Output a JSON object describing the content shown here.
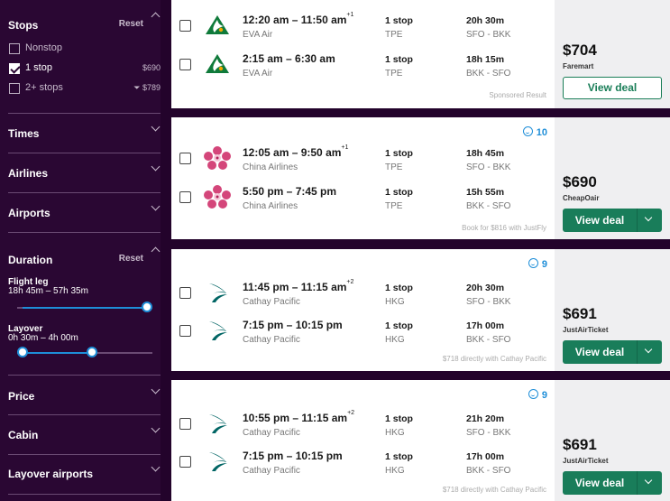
{
  "sidebar": {
    "stops": {
      "title": "Stops",
      "reset": "Reset",
      "options": [
        {
          "label": "Nonstop",
          "price": "",
          "checked": false
        },
        {
          "label": "1 stop",
          "price": "$690",
          "checked": true
        },
        {
          "label": "2+ stops",
          "price": "$789",
          "checked": false
        }
      ]
    },
    "times": {
      "title": "Times"
    },
    "airlines": {
      "title": "Airlines"
    },
    "airports": {
      "title": "Airports"
    },
    "duration": {
      "title": "Duration",
      "reset": "Reset",
      "flight_leg": {
        "label": "Flight leg",
        "range": "18h 45m – 57h 35m",
        "min_fraction": 0.0,
        "max_fraction": 1.0
      },
      "layover": {
        "label": "Layover",
        "range": "0h 30m – 4h 00m",
        "min_fraction": 0.0,
        "max_fraction": 0.56
      }
    },
    "price": {
      "title": "Price"
    },
    "cabin": {
      "title": "Cabin"
    },
    "layover_airports": {
      "title": "Layover airports"
    }
  },
  "results": [
    {
      "legs": [
        {
          "times": "12:20 am – 11:50 am",
          "day_offset": "+1",
          "airline": "EVA Air",
          "stops": "1 stop",
          "via": "TPE",
          "duration": "20h 30m",
          "route": "SFO - BKK",
          "logo": "eva-air-logo"
        },
        {
          "times": "2:15 am – 6:30 am",
          "day_offset": "",
          "airline": "EVA Air",
          "stops": "1 stop",
          "via": "TPE",
          "duration": "18h 15m",
          "route": "BKK - SFO",
          "logo": "eva-air-logo"
        }
      ],
      "footnote": "Sponsored Result",
      "rating": "",
      "price": "$704",
      "provider": "Faremart",
      "button": "View deal",
      "button_style": "outline"
    },
    {
      "legs": [
        {
          "times": "12:05 am – 9:50 am",
          "day_offset": "+1",
          "airline": "China Airlines",
          "stops": "1 stop",
          "via": "TPE",
          "duration": "18h 45m",
          "route": "SFO - BKK",
          "logo": "china-airlines-logo"
        },
        {
          "times": "5:50 pm – 7:45 pm",
          "day_offset": "",
          "airline": "China Airlines",
          "stops": "1 stop",
          "via": "TPE",
          "duration": "15h 55m",
          "route": "BKK - SFO",
          "logo": "china-airlines-logo"
        }
      ],
      "footnote": "Book for $816 with JustFly",
      "rating": "10",
      "price": "$690",
      "provider": "CheapOair",
      "button": "View deal",
      "button_style": "solid"
    },
    {
      "legs": [
        {
          "times": "11:45 pm – 11:15 am",
          "day_offset": "+2",
          "airline": "Cathay Pacific",
          "stops": "1 stop",
          "via": "HKG",
          "duration": "20h 30m",
          "route": "SFO - BKK",
          "logo": "cathay-pacific-logo"
        },
        {
          "times": "7:15 pm – 10:15 pm",
          "day_offset": "",
          "airline": "Cathay Pacific",
          "stops": "1 stop",
          "via": "HKG",
          "duration": "17h 00m",
          "route": "BKK - SFO",
          "logo": "cathay-pacific-logo"
        }
      ],
      "footnote": "$718 directly with Cathay Pacific",
      "rating": "9",
      "price": "$691",
      "provider": "JustAirTicket",
      "button": "View deal",
      "button_style": "solid"
    },
    {
      "legs": [
        {
          "times": "10:55 pm – 11:15 am",
          "day_offset": "+2",
          "airline": "Cathay Pacific",
          "stops": "1 stop",
          "via": "HKG",
          "duration": "21h 20m",
          "route": "SFO - BKK",
          "logo": "cathay-pacific-logo"
        },
        {
          "times": "7:15 pm – 10:15 pm",
          "day_offset": "",
          "airline": "Cathay Pacific",
          "stops": "1 stop",
          "via": "HKG",
          "duration": "17h 00m",
          "route": "BKK - SFO",
          "logo": "cathay-pacific-logo"
        }
      ],
      "footnote": "$718 directly with Cathay Pacific",
      "rating": "9",
      "price": "$691",
      "provider": "JustAirTicket",
      "button": "View deal",
      "button_style": "solid"
    }
  ],
  "colors": {
    "sidebar_bg": "#2a0733",
    "accent_blue": "#1e8ed8",
    "deal_green": "#197d5a"
  }
}
